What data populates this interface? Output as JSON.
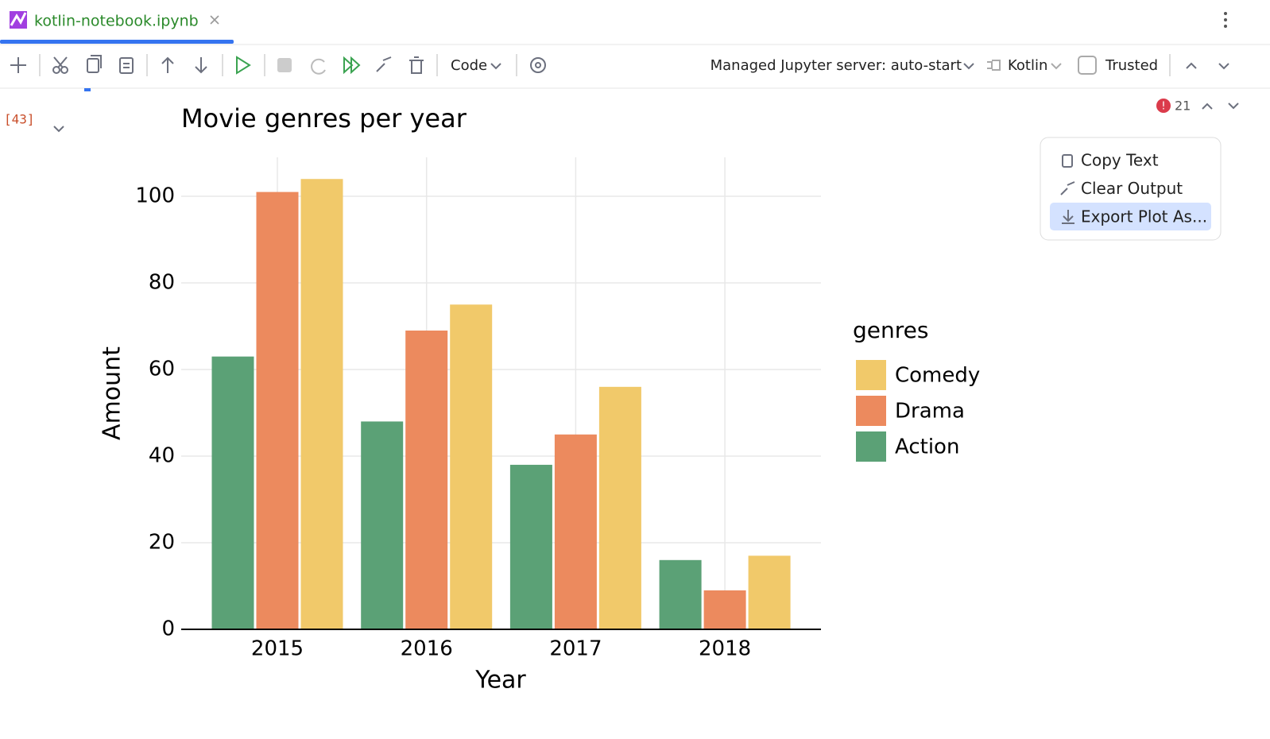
{
  "tab": {
    "title": "kotlin-notebook.ipynb"
  },
  "toolbar": {
    "cell_type": "Code",
    "server": "Managed Jupyter server: auto-start",
    "kernel": "Kotlin",
    "trusted": "Trusted"
  },
  "cell": {
    "execution_count": "[43]",
    "problems": "21"
  },
  "context_menu": {
    "items": [
      "Copy Text",
      "Clear Output",
      "Export Plot As..."
    ]
  },
  "chart_data": {
    "type": "bar",
    "title": "Movie genres per year",
    "x_label": "Year",
    "y_label": "Amount",
    "categories": [
      "2015",
      "2016",
      "2017",
      "2018"
    ],
    "series": [
      {
        "name": "Action",
        "color": "#5ba176",
        "values": [
          63,
          48,
          38,
          16
        ]
      },
      {
        "name": "Drama",
        "color": "#ec8a5e",
        "values": [
          101,
          69,
          45,
          9
        ]
      },
      {
        "name": "Comedy",
        "color": "#f1c96a",
        "values": [
          104,
          75,
          56,
          17
        ]
      }
    ],
    "legend_title": "genres",
    "legend_position": "right",
    "ylim": [
      0,
      109
    ],
    "yticks": [
      0,
      20,
      40,
      60,
      80,
      100
    ],
    "grid": true
  }
}
